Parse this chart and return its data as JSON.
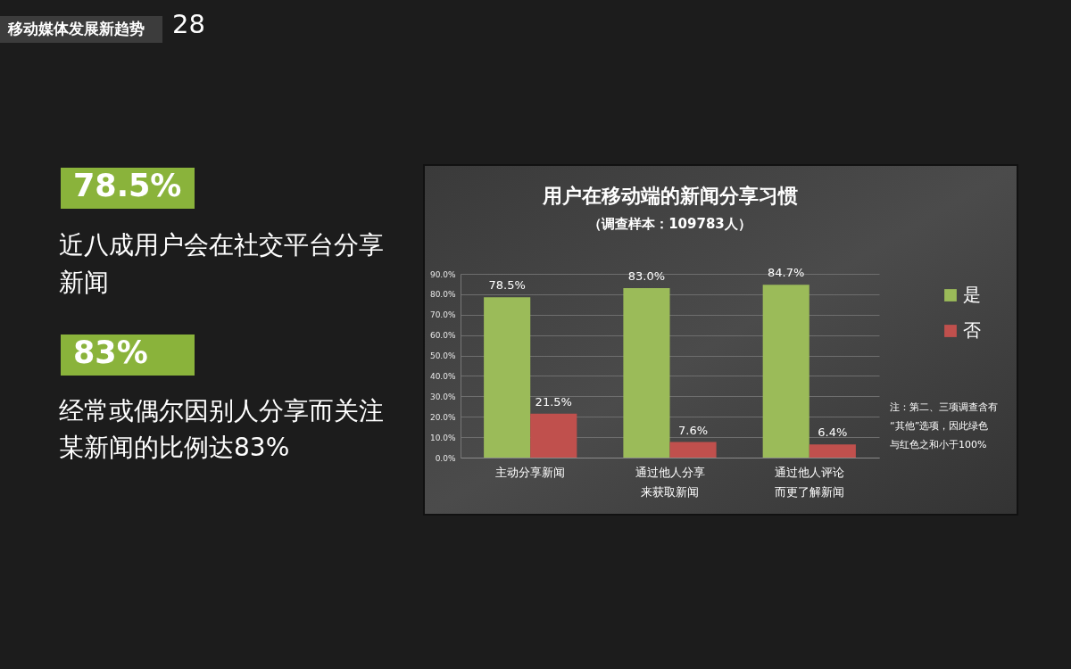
{
  "chart_data": [
    {
      "type": "other",
      "title": "移动媒体发展新趋势",
      "annotations": [
        "28",
        "78.5%",
        "近八成用户会在社交平台分享新闻",
        "83%",
        "经常或偶尔因别人分享而关注某新闻的比例达83%"
      ]
    },
    {
      "type": "bar",
      "title": "用户在移动端的新闻分享习惯",
      "subtitle": "（调查样本：109783人）",
      "categories": [
        "主动分享新闻",
        "通过他人分享来获取新闻",
        "通过他人评论而更了解新闻"
      ],
      "series": [
        {
          "name": "是",
          "color": "#9bbb59",
          "values": [
            78.5,
            83.0,
            84.7
          ],
          "value_labels": [
            "78.5%",
            "83.0%",
            "84.7%"
          ]
        },
        {
          "name": "否",
          "color": "#c0504d",
          "values": [
            21.5,
            7.6,
            6.4
          ],
          "value_labels": [
            "21.5%",
            "7.6%",
            "6.4%"
          ]
        }
      ],
      "ylim": [
        0,
        90
      ],
      "yticks": [
        {
          "value": 0,
          "label": "0.0%"
        },
        {
          "value": 10,
          "label": "10.0%"
        },
        {
          "value": 20,
          "label": "20.0%"
        },
        {
          "value": 30,
          "label": "30.0%"
        },
        {
          "value": 40,
          "label": "40.0%"
        },
        {
          "value": 50,
          "label": "50.0%"
        },
        {
          "value": 60,
          "label": "60.0%"
        },
        {
          "value": 70,
          "label": "70.0%"
        },
        {
          "value": 80,
          "label": "80.0%"
        },
        {
          "value": 90,
          "label": "90.0%"
        }
      ],
      "grid": "y",
      "legend": "right",
      "annotations": [
        "注：第二、三项调查含有“其他”选项，因此绿色与红色之和小于100%"
      ]
    }
  ]
}
